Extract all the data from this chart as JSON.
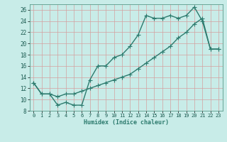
{
  "line1_x": [
    0,
    1,
    2,
    3,
    4,
    5,
    6,
    7,
    8,
    9,
    10,
    11,
    12,
    13,
    14,
    15,
    16,
    17,
    18,
    19,
    20,
    21,
    22,
    23
  ],
  "line1_y": [
    13,
    11,
    11,
    9,
    9.5,
    9,
    9,
    13.5,
    16,
    16,
    17.5,
    18,
    19.5,
    21.5,
    25,
    24.5,
    24.5,
    25,
    24.5,
    25,
    26.5,
    24,
    19,
    19
  ],
  "line2_x": [
    0,
    1,
    2,
    3,
    4,
    5,
    6,
    7,
    8,
    9,
    10,
    11,
    12,
    13,
    14,
    15,
    16,
    17,
    18,
    19,
    20,
    21,
    22,
    23
  ],
  "line2_y": [
    13,
    11,
    11,
    10.5,
    11,
    11,
    11.5,
    12,
    12.5,
    13,
    13.5,
    14,
    14.5,
    15.5,
    16.5,
    17.5,
    18.5,
    19.5,
    21,
    22,
    23.5,
    24.5,
    19,
    19
  ],
  "color": "#2d7b6e",
  "background": "#c8ece8",
  "grid_color": "#b0d8d2",
  "xlabel": "Humidex (Indice chaleur)",
  "ylim": [
    8,
    27
  ],
  "xlim": [
    -0.5,
    23.5
  ],
  "yticks": [
    8,
    10,
    12,
    14,
    16,
    18,
    20,
    22,
    24,
    26
  ],
  "xticks": [
    0,
    1,
    2,
    3,
    4,
    5,
    6,
    7,
    8,
    9,
    10,
    11,
    12,
    13,
    14,
    15,
    16,
    17,
    18,
    19,
    20,
    21,
    22,
    23
  ],
  "marker": "+",
  "linewidth": 1.0,
  "markersize": 4,
  "tick_fontsize": 5,
  "xlabel_fontsize": 6,
  "ytick_fontsize": 5.5
}
